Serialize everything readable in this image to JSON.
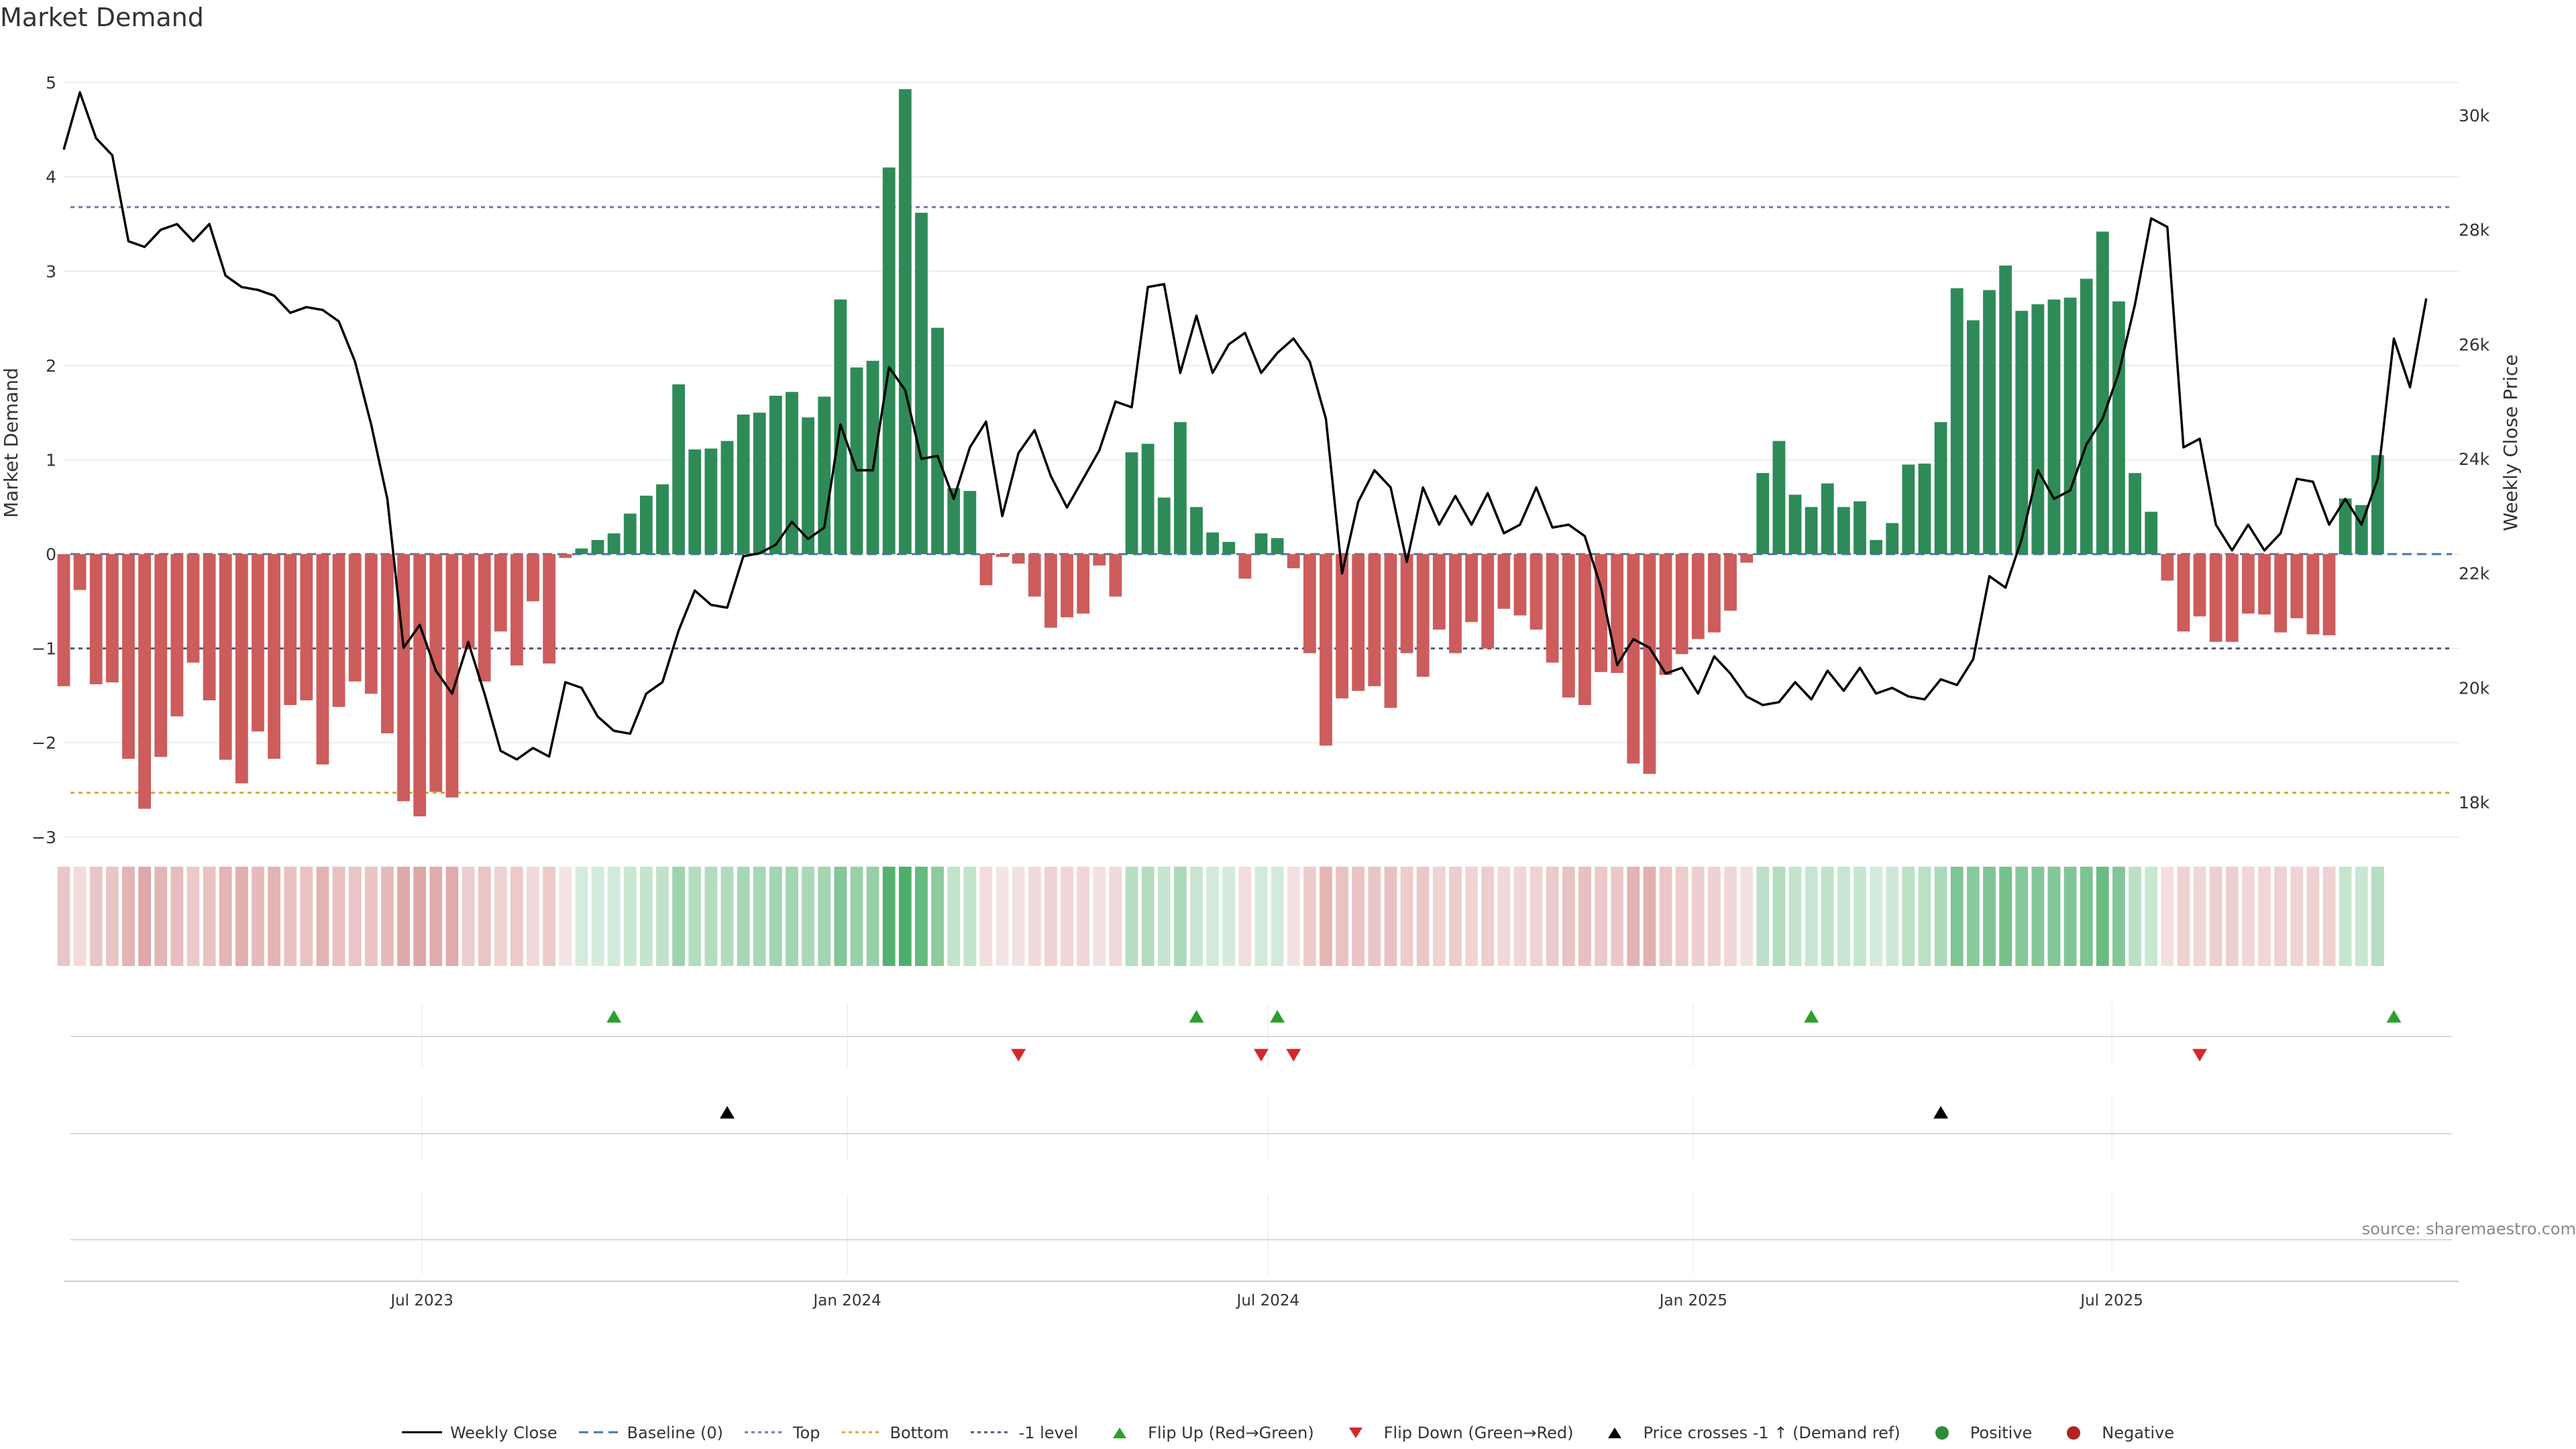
{
  "colors": {
    "green": "#2e8b57",
    "red": "#cd5c5c",
    "price": "#000000",
    "top_line": "#7777aa",
    "bottom_line": "#e0a030",
    "minus1_line": "#555577",
    "baseline": "#4477aa",
    "flip_up": "#2ca02c",
    "flip_down": "#d62728",
    "cross": "#000000",
    "grid": "#e8e8e8"
  },
  "chart_data": {
    "type": "bar",
    "title": "Market Demand",
    "ylabel": "Market Demand",
    "y2label": "Weekly Close Price",
    "ylim": [
      -3.3,
      5.2
    ],
    "y_ticks": [
      5,
      4,
      3,
      2,
      1,
      0,
      -1,
      -2,
      -3
    ],
    "y_tick_labels": [
      "5",
      "4",
      "3",
      "2",
      "1",
      "0",
      "−1",
      "−2",
      "−3"
    ],
    "y2lim": [
      16900,
      30900
    ],
    "y2_ticks": [
      30000,
      28000,
      26000,
      24000,
      22000,
      20000,
      18000
    ],
    "y2_tick_labels": [
      "30k",
      "28k",
      "26k",
      "24k",
      "22k",
      "20k",
      "18k"
    ],
    "top_level": 3.68,
    "bottom_level": -2.53,
    "minus1_level": -1.0,
    "x_start": "2023-01-27",
    "x_end": "2025-11-28",
    "x_ticks": [
      "2023-07-01",
      "2024-01-01",
      "2024-07-01",
      "2025-01-01",
      "2025-07-01"
    ],
    "x_tick_labels": [
      "Jul 2023",
      "Jan 2024",
      "Jul 2024",
      "Jan 2025",
      "Jul 2025"
    ],
    "first_week": "2023-01-27",
    "demand": [
      -1.4,
      -0.38,
      -1.38,
      -1.36,
      -2.17,
      -2.7,
      -2.15,
      -1.72,
      -1.15,
      -1.55,
      -2.18,
      -2.43,
      -1.88,
      -2.17,
      -1.6,
      -1.55,
      -2.23,
      -1.62,
      -1.35,
      -1.48,
      -1.9,
      -2.62,
      -2.78,
      -2.52,
      -2.58,
      -1.0,
      -1.35,
      -0.82,
      -1.18,
      -0.5,
      -1.16,
      -0.04,
      0.06,
      0.15,
      0.22,
      0.43,
      0.62,
      0.74,
      1.8,
      1.11,
      1.12,
      1.2,
      1.48,
      1.5,
      1.68,
      1.72,
      1.45,
      1.67,
      2.7,
      1.98,
      2.05,
      4.1,
      4.93,
      3.62,
      2.4,
      0.7,
      0.67,
      -0.33,
      -0.03,
      -0.1,
      -0.45,
      -0.78,
      -0.67,
      -0.63,
      -0.12,
      -0.45,
      1.08,
      1.17,
      0.6,
      1.4,
      0.5,
      0.23,
      0.13,
      -0.26,
      0.22,
      0.17,
      -0.15,
      -1.05,
      -2.03,
      -1.53,
      -1.45,
      -1.4,
      -1.63,
      -1.05,
      -1.3,
      -0.8,
      -1.05,
      -0.72,
      -1.0,
      -0.58,
      -0.65,
      -0.8,
      -1.15,
      -1.52,
      -1.6,
      -1.25,
      -1.26,
      -2.22,
      -2.33,
      -1.28,
      -1.06,
      -0.9,
      -0.83,
      -0.6,
      -0.09,
      0.86,
      1.2,
      0.63,
      0.5,
      0.75,
      0.5,
      0.56,
      0.15,
      0.33,
      0.95,
      0.96,
      1.4,
      2.82,
      2.48,
      2.8,
      3.06,
      2.58,
      2.65,
      2.7,
      2.72,
      2.92,
      3.42,
      2.68,
      0.86,
      0.45,
      -0.28,
      -0.82,
      -0.66,
      -0.93,
      -0.93,
      -0.63,
      -0.64,
      -0.83,
      -0.68,
      -0.85,
      -0.86,
      0.59,
      0.52,
      1.05
    ],
    "price": [
      29400,
      30400,
      29600,
      29300,
      27800,
      27700,
      28000,
      28100,
      27800,
      28100,
      27200,
      27000,
      26950,
      26850,
      26550,
      26650,
      26600,
      26400,
      25700,
      24600,
      23300,
      20700,
      21100,
      20300,
      19900,
      20800,
      19900,
      18900,
      18750,
      18950,
      18800,
      20100,
      20000,
      19500,
      19250,
      19200,
      19900,
      20100,
      21000,
      21700,
      21450,
      21400,
      22300,
      22350,
      22500,
      22900,
      22600,
      22800,
      24600,
      23800,
      23800,
      25600,
      25200,
      24000,
      24050,
      23300,
      24200,
      24650,
      23000,
      24100,
      24500,
      23700,
      23150,
      23650,
      24150,
      25000,
      24900,
      27000,
      27050,
      25500,
      26500,
      25500,
      26000,
      26200,
      25500,
      25850,
      26100,
      25700,
      24700,
      22000,
      23250,
      23800,
      23500,
      22200,
      23500,
      22850,
      23350,
      22850,
      23400,
      22700,
      22850,
      23500,
      22800,
      22850,
      22650,
      21750,
      20400,
      20850,
      20700,
      20250,
      20350,
      19900,
      20550,
      20250,
      19850,
      19700,
      19750,
      20100,
      19800,
      20300,
      19950,
      20350,
      19900,
      20000,
      19850,
      19800,
      20150,
      20050,
      20500,
      21950,
      21750,
      22600,
      23800,
      23300,
      23450,
      24250,
      24700,
      25500,
      26700,
      28200,
      28050,
      24200,
      24350,
      22850,
      22400,
      22850,
      22400,
      22700,
      23650,
      23600,
      22850,
      23300,
      22850,
      23650,
      26100,
      25250,
      26800
    ],
    "flip_up": [
      "2023-09-22",
      "2024-05-31",
      "2024-07-05",
      "2025-02-21",
      "2025-10-31"
    ],
    "flip_down": [
      "2024-03-15",
      "2024-06-28",
      "2024-07-12",
      "2025-08-08"
    ],
    "price_cross_up": [
      "2023-11-10",
      "2025-04-18"
    ]
  },
  "legend": [
    {
      "label": "Weekly Close",
      "icon": "solid-line"
    },
    {
      "label": "Baseline (0)",
      "icon": "dashed-line"
    },
    {
      "label": "Top",
      "icon": "dotted-line"
    },
    {
      "label": "Bottom",
      "icon": "dotted-line"
    },
    {
      "label": "-1 level",
      "icon": "dotted-line"
    },
    {
      "label": "Flip Up (Red→Green)",
      "icon": "triangle-up"
    },
    {
      "label": "Flip Down (Green→Red)",
      "icon": "triangle-down"
    },
    {
      "label": "Price crosses -1 ↑ (Demand ref)",
      "icon": "triangle-up"
    },
    {
      "label": "Positive",
      "icon": "circle"
    },
    {
      "label": "Negative",
      "icon": "circle"
    }
  ],
  "source_text": "source: sharemaestro.com"
}
